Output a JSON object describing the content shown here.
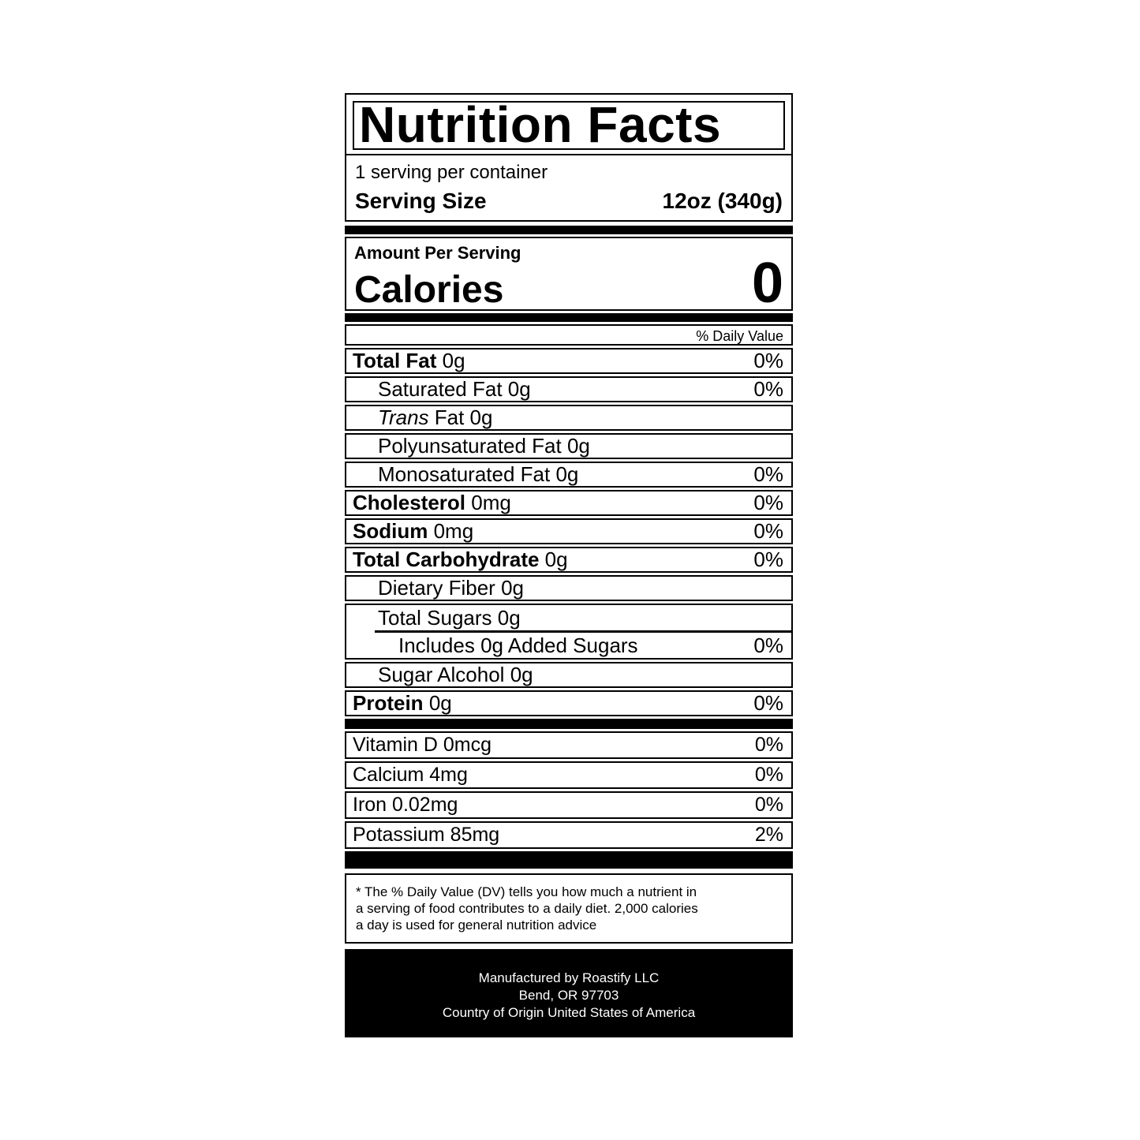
{
  "colors": {
    "ink": "#000000",
    "paper": "#ffffff"
  },
  "label": {
    "title": "Nutrition Facts",
    "servings_per_container": "1 serving per container",
    "serving_size": {
      "label": "Serving Size",
      "value": "12oz (340g)"
    },
    "amount_per_serving": "Amount Per Serving",
    "calories": {
      "label": "Calories",
      "value": "0"
    },
    "daily_value_header": "% Daily Value",
    "nutrients": {
      "total_fat": {
        "name": "Total Fat",
        "amount": "0g",
        "dv": "0%"
      },
      "saturated_fat": {
        "name": "Saturated Fat",
        "amount": "0g",
        "dv": "0%"
      },
      "trans_fat": {
        "name": "Trans",
        "amount": "Fat 0g",
        "dv": ""
      },
      "polyunsaturated_fat": {
        "name": "Polyunsaturated Fat",
        "amount": "0g",
        "dv": ""
      },
      "monosaturated_fat": {
        "name": "Monosaturated Fat",
        "amount": "0g",
        "dv": "0%"
      },
      "cholesterol": {
        "name": "Cholesterol",
        "amount": "0mg",
        "dv": "0%"
      },
      "sodium": {
        "name": "Sodium",
        "amount": "0mg",
        "dv": "0%"
      },
      "total_carbohydrate": {
        "name": "Total Carbohydrate",
        "amount": "0g",
        "dv": "0%"
      },
      "dietary_fiber": {
        "name": "Dietary Fiber",
        "amount": "0g",
        "dv": ""
      },
      "total_sugars": {
        "name": "Total Sugars",
        "amount": "0g",
        "dv": ""
      },
      "added_sugars": {
        "name": "Includes 0g Added Sugars",
        "amount": "",
        "dv": "0%"
      },
      "sugar_alcohol": {
        "name": "Sugar Alcohol",
        "amount": "0g",
        "dv": ""
      },
      "protein": {
        "name": "Protein",
        "amount": "0g",
        "dv": "0%"
      }
    },
    "micronutrients": [
      {
        "name": "Vitamin D",
        "amount": "0mcg",
        "dv": "0%"
      },
      {
        "name": "Calcium",
        "amount": "4mg",
        "dv": "0%"
      },
      {
        "name": "Iron",
        "amount": "0.02mg",
        "dv": "0%"
      },
      {
        "name": "Potassium",
        "amount": "85mg",
        "dv": "2%"
      }
    ],
    "footnote_lines": [
      "* The % Daily Value (DV) tells you how much a nutrient in",
      "a serving of food contributes to a daily diet. 2,000 calories",
      "a day is used for general nutrition advice"
    ],
    "manufacturer_lines": [
      "Manufactured by Roastify LLC",
      "Bend, OR 97703",
      "Country of Origin United States of America"
    ]
  }
}
